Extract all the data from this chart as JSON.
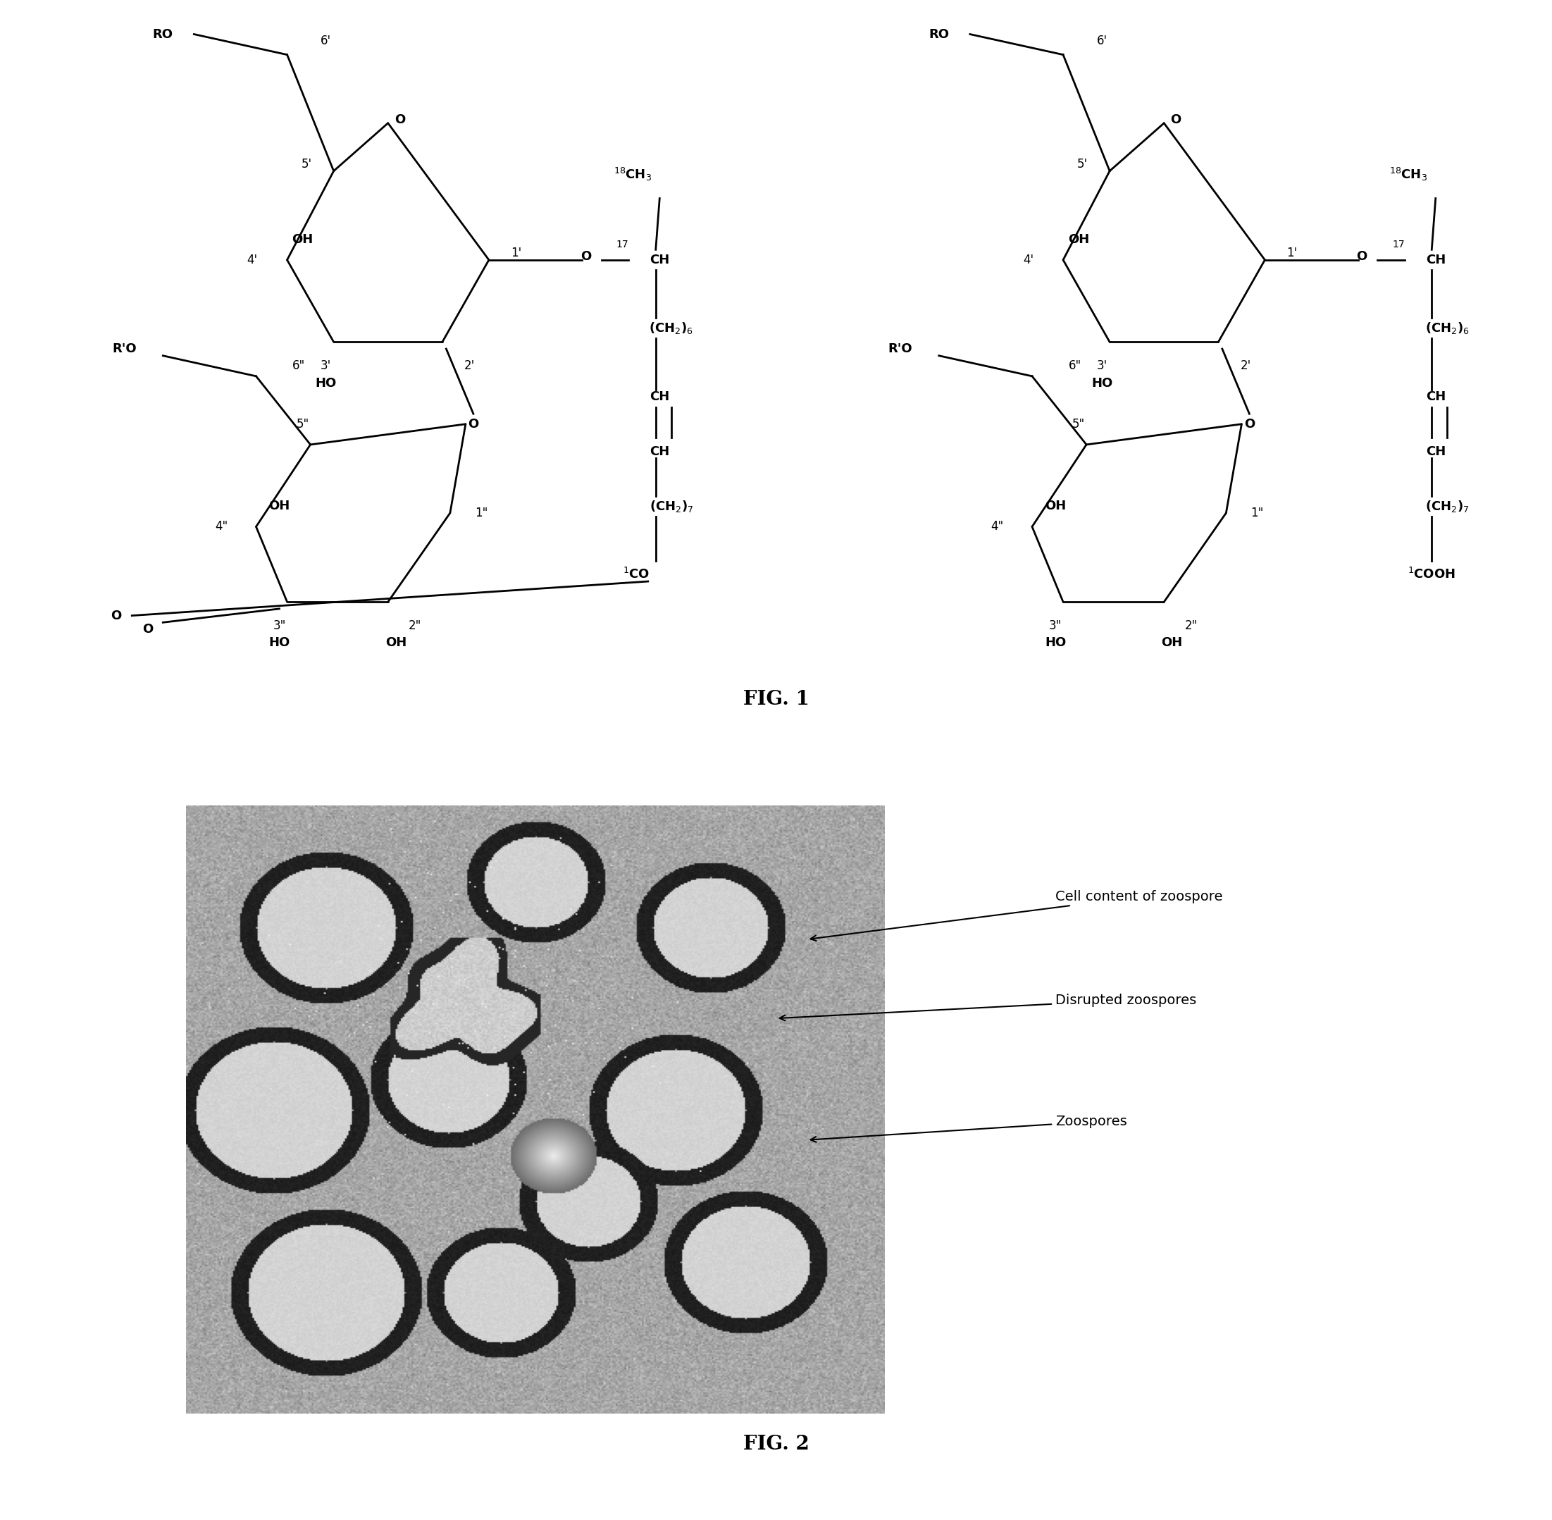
{
  "fig_width": 22.03,
  "fig_height": 21.57,
  "background_color": "#ffffff",
  "fig1_label": "FIG. 1",
  "fig2_label": "FIG. 2",
  "annotation1": "Cell content of zoospore",
  "annotation2": "Disrupted zoospores",
  "annotation3": "Zoospores",
  "line_color": "#000000",
  "text_color": "#000000",
  "font_size": 14,
  "label_font_size": 20
}
